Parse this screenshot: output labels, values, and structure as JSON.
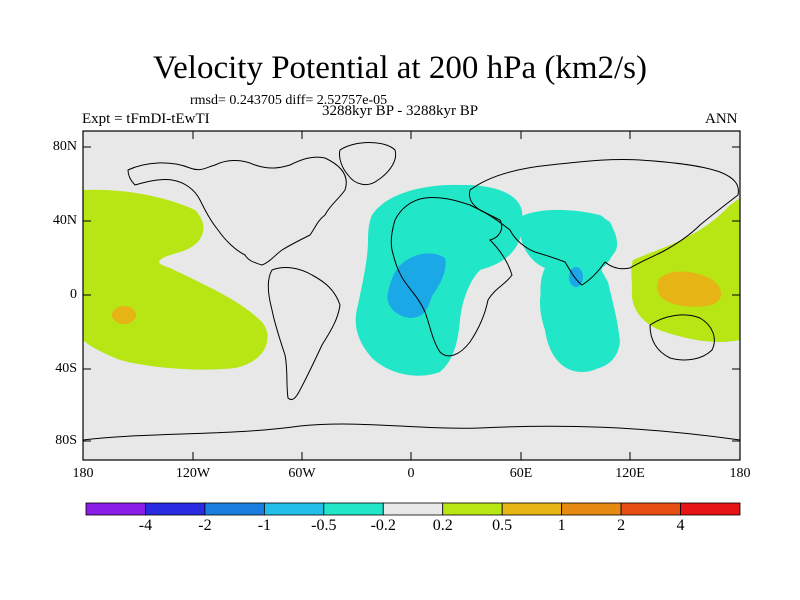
{
  "title": "Velocity Potential at 200 hPa (km2/s)",
  "stats_line": "rmsd= 0.243705  diff= 2.52757e-05",
  "subtitle": "3288kyr BP - 3288kyr BP",
  "experiment": "Expt = tFmDI-tEwTI",
  "season": "ANN",
  "map": {
    "lat_ticks": [
      "80N",
      "40N",
      "0",
      "40S",
      "80S"
    ],
    "lon_ticks": [
      "180",
      "120W",
      "60W",
      "0",
      "60E",
      "120E",
      "180"
    ]
  },
  "colorbar": {
    "levels": [
      "-4",
      "-2",
      "-1",
      "-0.5",
      "-0.2",
      "0.2",
      "0.5",
      "1",
      "2",
      "4"
    ],
    "colors": [
      "#8a1ee6",
      "#2a2ae0",
      "#1a7ee0",
      "#22bde8",
      "#22e6c8",
      "#e8e8e8",
      "#b8e614",
      "#e6b414",
      "#e68a14",
      "#e64e14",
      "#e61414"
    ]
  },
  "colors": {
    "land_bg": "#e8e8e8",
    "teal": "#22e6c8",
    "blue": "#1aa8e6",
    "lime": "#b8e614",
    "orange": "#e6b414"
  }
}
